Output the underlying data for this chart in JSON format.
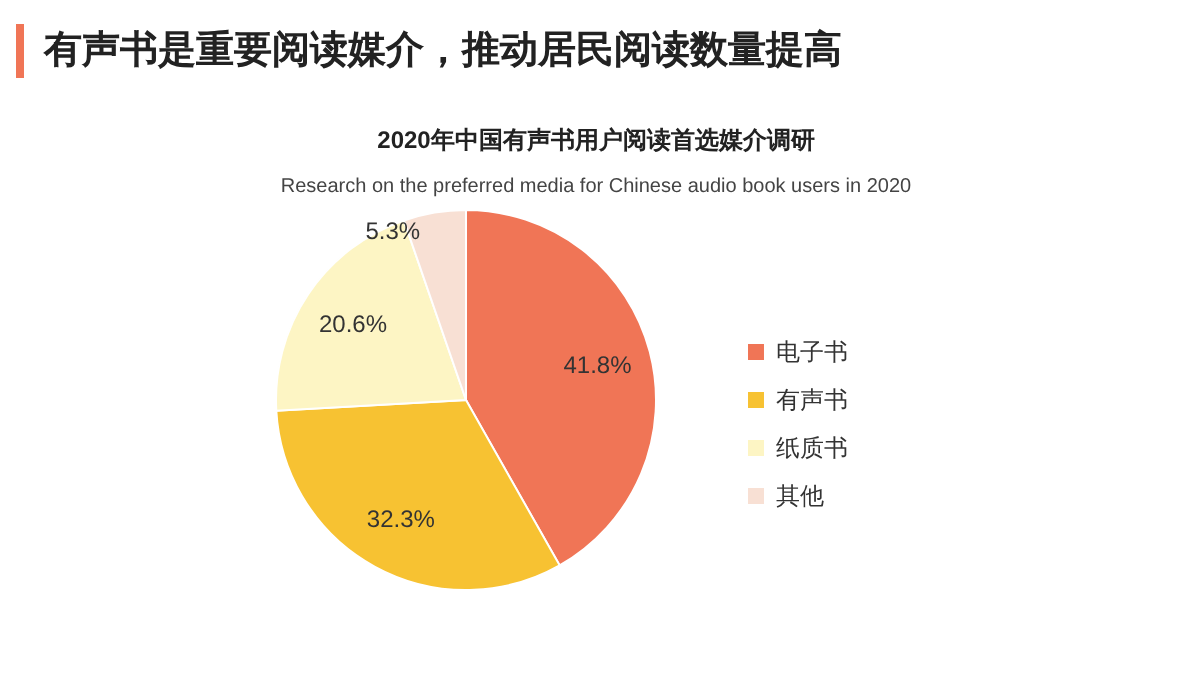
{
  "chart_data": {
    "type": "pie",
    "title": "有声书是重要阅读媒介，推动居民阅读数量提高",
    "subtitle": "2020年中国有声书用户阅读首选媒介调研",
    "annotations": [
      "Research on the preferred media for Chinese audio book users in 2020"
    ],
    "categories": [
      "电子书",
      "有声书",
      "纸质书",
      "其他"
    ],
    "values": [
      41.8,
      32.3,
      20.6,
      5.3
    ],
    "value_labels": [
      "41.8%",
      "32.3%",
      "20.6%",
      "5.3%"
    ],
    "colors": [
      "#f07556",
      "#f7c232",
      "#fdf5c4",
      "#f8e0d4"
    ],
    "legend": "right"
  }
}
